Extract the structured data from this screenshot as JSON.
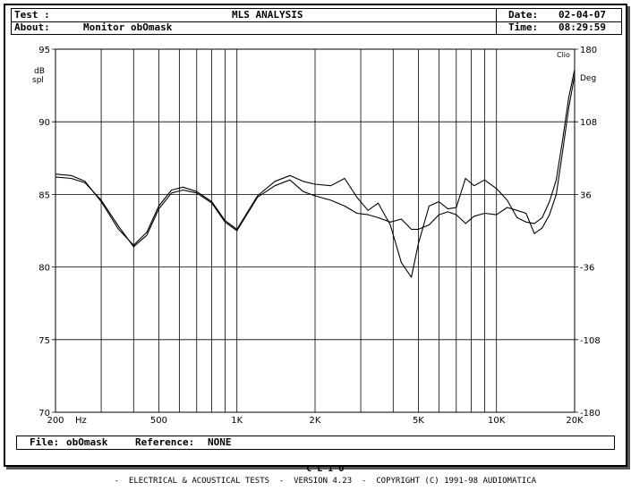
{
  "header": {
    "test_label": "Test :",
    "about_label": "About:",
    "about_value": "Monitor obOmask",
    "title": "MLS ANALYSIS",
    "date_label": "Date:",
    "date_value": "02-04-07",
    "time_label": "Time:",
    "time_value": "08:29:59"
  },
  "file_bar": {
    "file_label": "File:",
    "file_value": "obOmask",
    "reference_label": "Reference:",
    "reference_value": "NONE"
  },
  "footer": {
    "brand": "C L I O",
    "text": "-  ELECTRICAL & ACOUSTICAL TESTS  -  VERSION 4.23  -  COPYRIGHT (C) 1991-98 AUDIOMATICA"
  },
  "chart_data": {
    "type": "line",
    "xscale": "log",
    "xlim": [
      200,
      20000
    ],
    "ylim": [
      70,
      95
    ],
    "y2lim": [
      -180,
      180
    ],
    "grid": true,
    "xunit_label": "Hz",
    "ylabel": "dB spl",
    "y2label": "Deg",
    "corner_label": "Clio",
    "x_tick_labels": [
      {
        "value": 200,
        "label": "200"
      },
      {
        "value": 500,
        "label": "500"
      },
      {
        "value": 1000,
        "label": "1K"
      },
      {
        "value": 2000,
        "label": "2K"
      },
      {
        "value": 5000,
        "label": "5K"
      },
      {
        "value": 10000,
        "label": "10K"
      },
      {
        "value": 20000,
        "label": "20K"
      }
    ],
    "x_gridlines": [
      200,
      300,
      400,
      500,
      600,
      700,
      800,
      900,
      1000,
      2000,
      3000,
      4000,
      5000,
      6000,
      7000,
      8000,
      9000,
      10000,
      20000
    ],
    "y_ticks": [
      70,
      75,
      80,
      85,
      90,
      95
    ],
    "y2_ticks": [
      -180,
      -108,
      -36,
      36,
      108,
      180
    ],
    "series": [
      {
        "color": "#000000",
        "x": [
          200,
          230,
          260,
          300,
          350,
          400,
          450,
          500,
          560,
          620,
          700,
          800,
          900,
          1000,
          1100,
          1200,
          1400,
          1600,
          1800,
          2000,
          2300,
          2600,
          2900,
          3200,
          3500,
          3900,
          4300,
          4700,
          5000,
          5500,
          6000,
          6500,
          7000,
          7600,
          8200,
          9000,
          10000,
          11000,
          12000,
          13000,
          14000,
          15000,
          16000,
          17000,
          18000,
          19000,
          20000
        ],
        "values": [
          86.4,
          86.3,
          85.9,
          84.5,
          82.6,
          81.5,
          82.4,
          84.2,
          85.3,
          85.5,
          85.2,
          84.5,
          83.2,
          82.6,
          83.8,
          84.9,
          85.9,
          86.3,
          85.9,
          85.7,
          85.6,
          86.1,
          84.8,
          83.9,
          84.4,
          82.9,
          80.3,
          79.3,
          81.6,
          84.2,
          84.5,
          84.0,
          84.1,
          86.1,
          85.6,
          86.0,
          85.4,
          84.6,
          83.4,
          83.1,
          83.0,
          83.4,
          84.5,
          86.0,
          88.8,
          91.7,
          93.6
        ]
      },
      {
        "color": "#000000",
        "x": [
          200,
          230,
          260,
          300,
          350,
          400,
          450,
          500,
          560,
          620,
          700,
          800,
          900,
          1000,
          1100,
          1200,
          1400,
          1600,
          1800,
          2000,
          2300,
          2600,
          2900,
          3200,
          3500,
          3900,
          4300,
          4700,
          5000,
          5500,
          6000,
          6500,
          7000,
          7600,
          8200,
          9000,
          10000,
          11000,
          12000,
          13000,
          14000,
          15000,
          16000,
          17000,
          18000,
          19000,
          20000
        ],
        "values": [
          86.2,
          86.1,
          85.8,
          84.6,
          82.8,
          81.4,
          82.2,
          84.0,
          85.1,
          85.3,
          85.1,
          84.4,
          83.1,
          82.5,
          83.7,
          84.8,
          85.6,
          86.0,
          85.2,
          84.9,
          84.6,
          84.2,
          83.7,
          83.6,
          83.4,
          83.1,
          83.3,
          82.6,
          82.6,
          82.9,
          83.6,
          83.8,
          83.6,
          83.0,
          83.5,
          83.7,
          83.6,
          84.1,
          83.9,
          83.7,
          82.3,
          82.7,
          83.6,
          85.0,
          88.0,
          91.0,
          93.2
        ]
      }
    ]
  }
}
